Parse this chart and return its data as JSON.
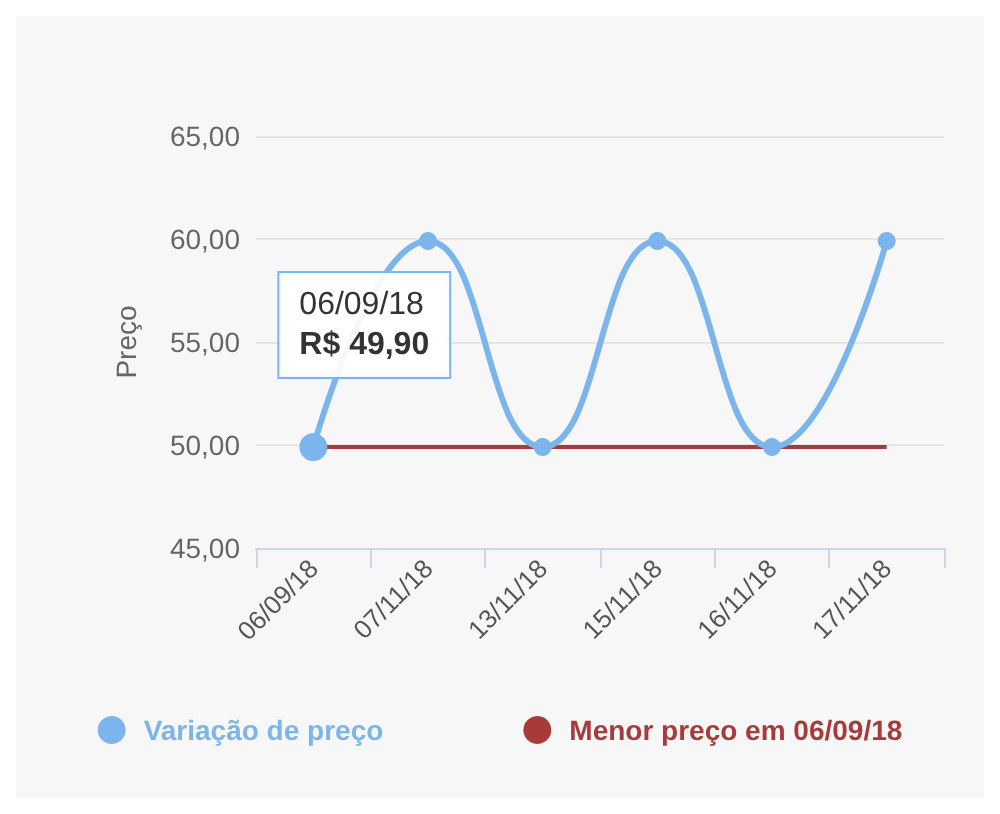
{
  "chart_data": {
    "type": "line",
    "ylabel": "Preço",
    "categories": [
      "06/09/18",
      "07/11/18",
      "13/11/18",
      "15/11/18",
      "16/11/18",
      "17/11/18"
    ],
    "series": [
      {
        "name": "Variação de preço",
        "color": "#7cb5ec",
        "values": [
          49.9,
          59.9,
          49.9,
          59.9,
          49.9,
          59.9
        ],
        "marker": "circle"
      },
      {
        "name": "Menor preço em 06/09/18",
        "color": "#a93a3a",
        "values": [
          49.9,
          49.9,
          49.9,
          49.9,
          49.9,
          49.9
        ],
        "marker": "none"
      }
    ],
    "ylim": [
      45,
      65
    ],
    "yticks": [
      {
        "value": 45,
        "label": "45,00"
      },
      {
        "value": 50,
        "label": "50,00"
      },
      {
        "value": 55,
        "label": "55,00"
      },
      {
        "value": 60,
        "label": "60,00"
      },
      {
        "value": 65,
        "label": "65,00"
      }
    ],
    "annotations": [
      {
        "text": "06/09/18\nR$ 49,90",
        "x": "06/09/18",
        "y": 49.9
      }
    ],
    "grid": "y",
    "legend": "bottom"
  }
}
